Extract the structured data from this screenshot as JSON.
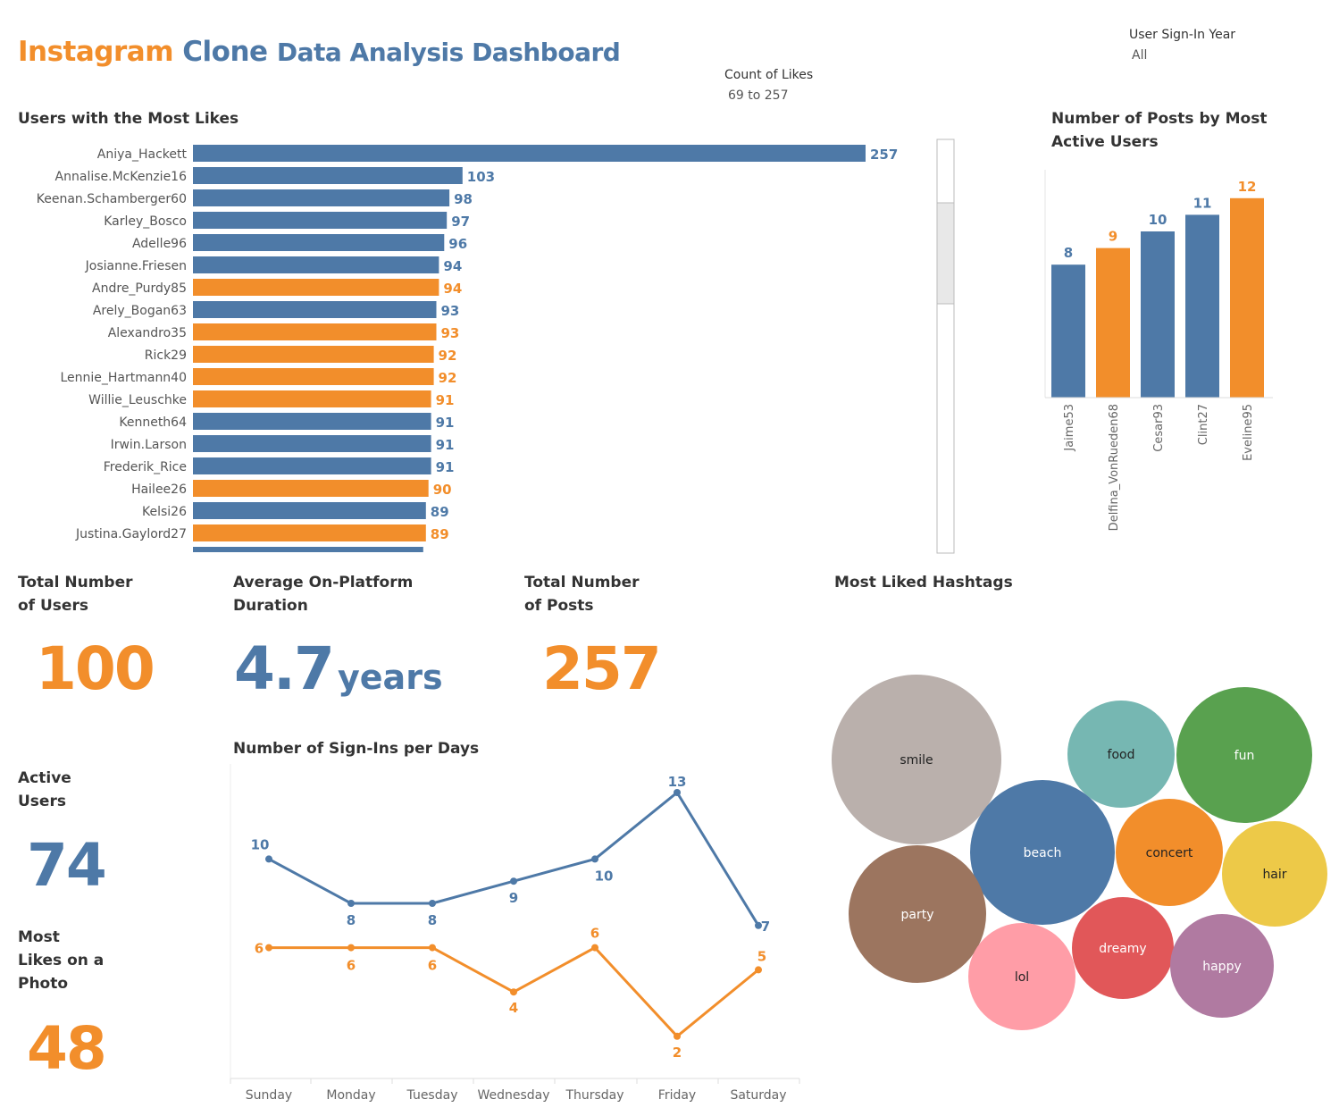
{
  "header": {
    "title_part1": "Instagram",
    "title_part2": "Clone",
    "title_part3": "Data Analysis Dashboard"
  },
  "filters": {
    "likes_label": "Count of Likes",
    "likes_value": "69 to 257",
    "year_label": "User Sign-In Year",
    "year_value": "All"
  },
  "colors": {
    "blue": "#4e79a7",
    "orange": "#f28e2b"
  },
  "kpis": {
    "total_users_title": "Total Number of Users",
    "total_users_value": "100",
    "avg_duration_title": "Average On-Platform Duration",
    "avg_duration_value": "4.7",
    "avg_duration_unit": "years",
    "total_posts_title": "Total Number of Posts",
    "total_posts_value": "257",
    "active_users_title": "Active Users",
    "active_users_value": "74",
    "most_likes_title": "Most Likes on a Photo",
    "most_likes_value": "48"
  },
  "chart_data": [
    {
      "type": "bar",
      "orientation": "horizontal",
      "title": "Users with the Most Likes",
      "categories": [
        "Aniya_Hackett",
        "Annalise.McKenzie16",
        "Keenan.Schamberger60",
        "Karley_Bosco",
        "Adelle96",
        "Josianne.Friesen",
        "Andre_Purdy85",
        "Arely_Bogan63",
        "Alexandro35",
        "Rick29",
        "Lennie_Hartmann40",
        "Willie_Leuschke",
        "Kenneth64",
        "Irwin.Larson",
        "Frederik_Rice",
        "Hailee26",
        "Kelsi26",
        "Justina.Gaylord27"
      ],
      "values": [
        257,
        103,
        98,
        97,
        96,
        94,
        94,
        93,
        93,
        92,
        92,
        91,
        91,
        91,
        91,
        90,
        89,
        89
      ],
      "colors": [
        "blue",
        "blue",
        "blue",
        "blue",
        "blue",
        "blue",
        "orange",
        "blue",
        "orange",
        "orange",
        "orange",
        "orange",
        "blue",
        "blue",
        "blue",
        "orange",
        "blue",
        "orange"
      ]
    },
    {
      "type": "bar",
      "title": "Number of Posts by Most Active Users",
      "categories": [
        "Jaime53",
        "Delfina_VonRueden68",
        "Cesar93",
        "Clint27",
        "Eveline95"
      ],
      "values": [
        8,
        9,
        10,
        11,
        12
      ],
      "colors": [
        "blue",
        "orange",
        "blue",
        "blue",
        "orange"
      ]
    },
    {
      "type": "line",
      "title": "Number of Sign-Ins per Days",
      "categories": [
        "Sunday",
        "Monday",
        "Tuesday",
        "Wednesday",
        "Thursday",
        "Friday",
        "Saturday"
      ],
      "series": [
        {
          "values": [
            10,
            8,
            8,
            9,
            10,
            13,
            7
          ],
          "color": "blue"
        },
        {
          "values": [
            6,
            6,
            6,
            4,
            6,
            2,
            5
          ],
          "color": "orange"
        }
      ]
    },
    {
      "type": "bubble",
      "title": "Most Liked Hashtags",
      "items": [
        {
          "label": "smile",
          "color": "#bab0ac"
        },
        {
          "label": "food",
          "color": "#76b7b2"
        },
        {
          "label": "fun",
          "color": "#59a14f"
        },
        {
          "label": "beach",
          "color": "#4e79a7"
        },
        {
          "label": "concert",
          "color": "#f28e2b"
        },
        {
          "label": "hair",
          "color": "#edc948"
        },
        {
          "label": "party",
          "color": "#9c755f"
        },
        {
          "label": "dreamy",
          "color": "#e15759"
        },
        {
          "label": "happy",
          "color": "#b07aa1"
        },
        {
          "label": "lol",
          "color": "#ff9da7"
        }
      ]
    }
  ]
}
